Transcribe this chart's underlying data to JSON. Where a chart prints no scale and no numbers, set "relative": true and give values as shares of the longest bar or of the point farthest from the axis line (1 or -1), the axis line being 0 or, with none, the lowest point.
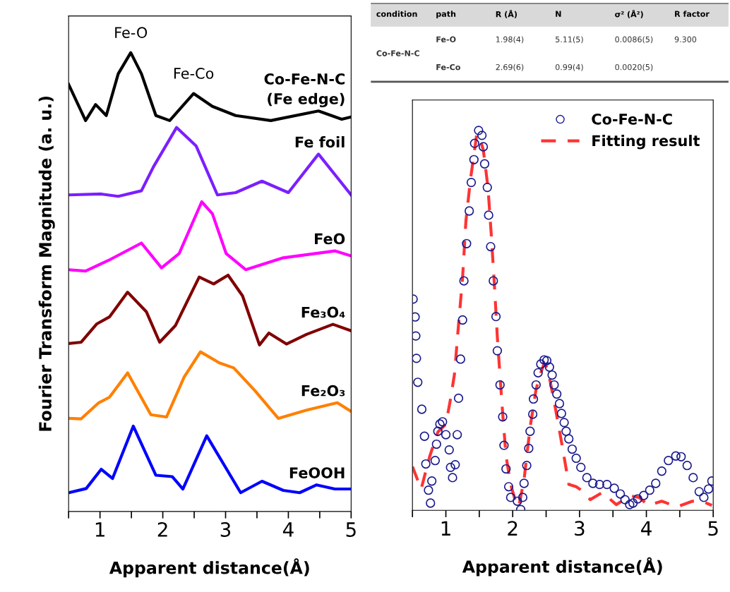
{
  "chart_data": [
    {
      "type": "line",
      "relative": true,
      "xlabel": "Apparent distance(Å)",
      "ylabel": "Fourier Transform Magnitude (a. u.)",
      "xlim": [
        0.5,
        5
      ],
      "xticks": [
        {
          "value": 0.5,
          "label": null
        },
        1,
        {
          "value": 1.5,
          "label": null
        },
        2,
        {
          "value": 2.5,
          "label": null
        },
        3,
        {
          "value": 3.5,
          "label": null
        },
        4,
        {
          "value": 4.5,
          "label": null
        },
        5
      ],
      "tick_labels": "x",
      "grid": false,
      "legend": false,
      "marker": "none",
      "line_style": "solid",
      "annotations": [
        {
          "text": "Fe-O",
          "x": 1.49,
          "y": 1.0
        },
        {
          "text": "Fe-Co",
          "x": 2.49,
          "y": 0.911
        }
      ],
      "series": [
        {
          "name": "Co-Fe-N-C\n(Fe edge)",
          "color": "#000000",
          "x": [
            0.5,
            0.77,
            0.93,
            1.1,
            1.29,
            1.49,
            1.66,
            1.89,
            2.11,
            2.49,
            2.79,
            3.16,
            3.72,
            4.48,
            4.85,
            5.0
          ],
          "values": [
            0.931,
            0.852,
            0.887,
            0.863,
            0.954,
            1.0,
            0.954,
            0.863,
            0.852,
            0.911,
            0.883,
            0.863,
            0.852,
            0.873,
            0.855,
            0.86
          ]
        },
        {
          "name": "Fe foil",
          "color": "#7b1fff",
          "x": [
            0.5,
            1.02,
            1.29,
            1.66,
            1.85,
            2.22,
            2.53,
            2.87,
            3.16,
            3.58,
            4.0,
            4.48,
            5.0
          ],
          "values": [
            0.69,
            0.692,
            0.687,
            0.699,
            0.751,
            0.837,
            0.797,
            0.69,
            0.695,
            0.72,
            0.695,
            0.779,
            0.69
          ]
        },
        {
          "name": "FeO",
          "color": "#ff00ff",
          "x": [
            0.5,
            0.77,
            1.13,
            1.66,
            1.98,
            2.26,
            2.62,
            2.79,
            3.01,
            3.32,
            3.92,
            4.74,
            5.0
          ],
          "values": [
            0.527,
            0.524,
            0.547,
            0.585,
            0.531,
            0.562,
            0.675,
            0.649,
            0.562,
            0.527,
            0.553,
            0.568,
            0.557
          ]
        },
        {
          "name": "Fe₃O₄",
          "color": "#800000",
          "x": [
            0.5,
            0.7,
            0.95,
            1.15,
            1.44,
            1.74,
            1.95,
            2.2,
            2.58,
            2.81,
            3.04,
            3.27,
            3.54,
            3.69,
            3.97,
            4.29,
            4.71,
            5.0
          ],
          "values": [
            0.366,
            0.369,
            0.409,
            0.424,
            0.478,
            0.435,
            0.369,
            0.405,
            0.511,
            0.496,
            0.515,
            0.47,
            0.363,
            0.389,
            0.365,
            0.386,
            0.408,
            0.394
          ]
        },
        {
          "name": "Fe₂O₃",
          "color": "#ff8000",
          "x": [
            0.5,
            0.7,
            0.98,
            1.15,
            1.44,
            1.81,
            2.06,
            2.34,
            2.6,
            2.9,
            3.13,
            3.47,
            3.84,
            4.29,
            4.78,
            5.0
          ],
          "values": [
            0.203,
            0.202,
            0.237,
            0.249,
            0.302,
            0.211,
            0.206,
            0.293,
            0.348,
            0.324,
            0.313,
            0.263,
            0.203,
            0.221,
            0.237,
            0.218
          ]
        },
        {
          "name": "FeOOH",
          "color": "#0000ff",
          "x": [
            0.5,
            0.78,
            1.02,
            1.2,
            1.53,
            1.89,
            2.15,
            2.32,
            2.7,
            3.24,
            3.58,
            3.92,
            4.18,
            4.45,
            4.74,
            5.0
          ],
          "values": [
            0.041,
            0.05,
            0.092,
            0.072,
            0.186,
            0.079,
            0.076,
            0.049,
            0.165,
            0.041,
            0.066,
            0.046,
            0.041,
            0.058,
            0.049,
            0.049
          ]
        }
      ]
    },
    {
      "type": "other",
      "categories": [
        "condition",
        "path",
        "R (Å)",
        "N",
        "σ² (Å²)",
        "R factor"
      ],
      "cells": [
        [
          "Co-Fe-N-C",
          "Fe-O",
          "1.98(4)",
          "5.11(5)",
          "0.0086(5)",
          "9.300"
        ],
        [
          null,
          "Fe-Co",
          "2.69(6)",
          "0.99(4)",
          "0.0020(5)",
          null
        ]
      ]
    },
    {
      "type": "scatter",
      "relative": true,
      "xlabel": "Apparent distance(Å)",
      "xlim": [
        0.5,
        5
      ],
      "xticks": [
        {
          "value": 0.5,
          "label": null
        },
        1,
        {
          "value": 1.5,
          "label": null
        },
        2,
        {
          "value": 2.5,
          "label": null
        },
        3,
        {
          "value": 3.5,
          "label": null
        },
        4,
        {
          "value": 4.5,
          "label": null
        },
        5
      ],
      "tick_labels": "x",
      "grid": false,
      "legend": "top right",
      "series": [
        {
          "name": "Co-Fe-N-C",
          "type": "scatter",
          "marker": "circle",
          "color": "#1a1a8c",
          "x": [
            0.51,
            0.54,
            0.55,
            0.56,
            0.58,
            0.64,
            0.68,
            0.7,
            0.74,
            0.77,
            0.79,
            0.84,
            0.86,
            0.88,
            0.91,
            0.95,
            1.0,
            1.05,
            1.07,
            1.1,
            1.14,
            1.17,
            1.19,
            1.22,
            1.25,
            1.27,
            1.31,
            1.35,
            1.38,
            1.42,
            1.43,
            1.49,
            1.54,
            1.56,
            1.58,
            1.62,
            1.64,
            1.67,
            1.71,
            1.75,
            1.77,
            1.81,
            1.85,
            1.87,
            1.9,
            1.94,
            1.97,
            2.07,
            2.12,
            2.15,
            2.17,
            2.21,
            2.24,
            2.26,
            2.3,
            2.31,
            2.35,
            2.38,
            2.42,
            2.47,
            2.51,
            2.55,
            2.59,
            2.62,
            2.66,
            2.7,
            2.73,
            2.77,
            2.8,
            2.84,
            2.89,
            2.95,
            3.02,
            3.11,
            3.2,
            3.3,
            3.41,
            3.52,
            3.61,
            3.68,
            3.75,
            3.8,
            3.87,
            3.96,
            4.05,
            4.14,
            4.23,
            4.33,
            4.44,
            4.52,
            4.61,
            4.7,
            4.79,
            4.86,
            4.93,
            4.98
          ],
          "values": [
            0.556,
            0.509,
            0.459,
            0.4,
            0.337,
            0.266,
            0.195,
            0.122,
            0.053,
            0.019,
            0.077,
            0.131,
            0.174,
            0.208,
            0.227,
            0.233,
            0.199,
            0.159,
            0.113,
            0.086,
            0.12,
            0.199,
            0.295,
            0.398,
            0.501,
            0.604,
            0.702,
            0.788,
            0.863,
            0.923,
            0.966,
            1.0,
            0.987,
            0.957,
            0.912,
            0.85,
            0.777,
            0.694,
            0.604,
            0.51,
            0.42,
            0.33,
            0.246,
            0.171,
            0.109,
            0.062,
            0.034,
            0.024,
            0.002,
            0.034,
            0.071,
            0.118,
            0.163,
            0.208,
            0.253,
            0.293,
            0.33,
            0.362,
            0.385,
            0.396,
            0.394,
            0.377,
            0.356,
            0.33,
            0.306,
            0.281,
            0.255,
            0.231,
            0.208,
            0.188,
            0.161,
            0.137,
            0.113,
            0.086,
            0.071,
            0.068,
            0.068,
            0.058,
            0.043,
            0.028,
            0.015,
            0.019,
            0.03,
            0.039,
            0.053,
            0.071,
            0.103,
            0.131,
            0.143,
            0.141,
            0.118,
            0.086,
            0.049,
            0.034,
            0.056,
            0.077
          ]
        },
        {
          "name": "Fitting result",
          "type": "line",
          "line_style": "dashed",
          "color": "#ff3333",
          "x": [
            0.5,
            0.63,
            0.76,
            0.88,
            1.0,
            1.07,
            1.13,
            1.18,
            1.25,
            1.3,
            1.37,
            1.46,
            1.49,
            1.56,
            1.63,
            1.68,
            1.73,
            1.77,
            1.8,
            1.85,
            1.9,
            1.97,
            2.05,
            2.09,
            2.17,
            2.26,
            2.35,
            2.42,
            2.47,
            2.52,
            2.62,
            2.73,
            2.84,
            2.95,
            3.06,
            3.16,
            3.34,
            3.55,
            3.76,
            3.89,
            4.03,
            4.23,
            4.46,
            4.69,
            4.83,
            4.98
          ],
          "values": [
            0.115,
            0.056,
            0.143,
            0.206,
            0.227,
            0.293,
            0.36,
            0.469,
            0.612,
            0.762,
            0.874,
            0.987,
            0.99,
            0.949,
            0.85,
            0.724,
            0.582,
            0.456,
            0.38,
            0.255,
            0.143,
            0.068,
            0.019,
            0.009,
            0.081,
            0.218,
            0.319,
            0.362,
            0.386,
            0.375,
            0.287,
            0.18,
            0.068,
            0.062,
            0.049,
            0.028,
            0.047,
            0.015,
            0.038,
            0.034,
            0.013,
            0.024,
            0.009,
            0.024,
            0.024,
            0.013
          ]
        }
      ]
    }
  ]
}
